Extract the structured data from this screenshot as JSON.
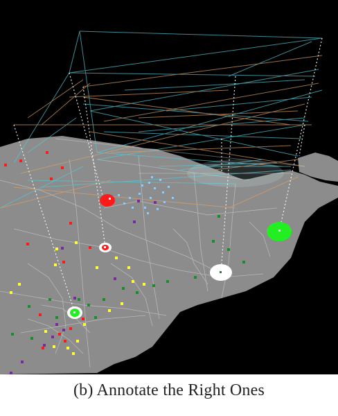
{
  "caption": "(b) Annotate the Right Ones",
  "colors": {
    "background": "#000000",
    "land": "#8c8c8c",
    "road": "#c7c7c7",
    "link_cyan": "#58c7d4",
    "link_orange": "#d8a06a",
    "marker_red": "#ff1a1a",
    "marker_green": "#22ee22",
    "marker_white": "#ffffff",
    "marker_yellow": "#ffff33",
    "marker_purple": "#7a2a9a",
    "marker_lightblue": "#9fc8e8"
  },
  "highlighted_icons": [
    "red-circle-icon",
    "white-red-ring-icon",
    "green-circle-icon",
    "white-circle-icon",
    "white-green-ring-icon"
  ]
}
